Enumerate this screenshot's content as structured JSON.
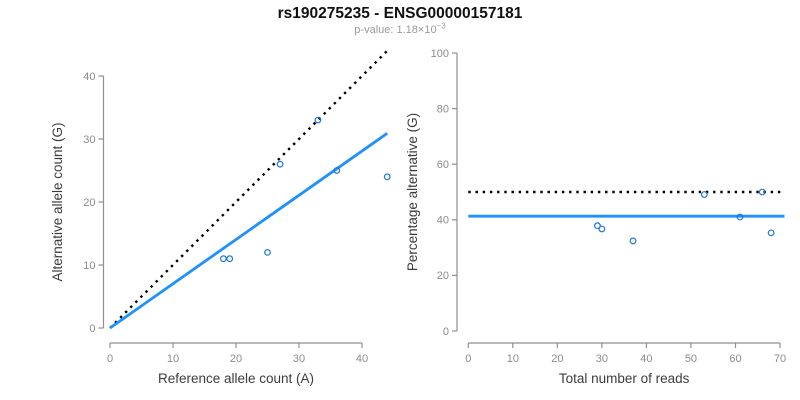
{
  "header": {
    "title": "rs190275235 - ENSG00000157181",
    "subtitle_prefix": "p-value: 1.18×10",
    "subtitle_exponent": "−3"
  },
  "colors": {
    "axis": "#8f8f8f",
    "tick_label": "#8c8c8c",
    "axis_label": "#3c3c3c",
    "title": "#111111",
    "subtitle": "#9b9b9b",
    "fit_line_blue": "#1E90FF",
    "point_blue": "#1C7AD6",
    "reference_line_black": "#000000"
  },
  "chart_data": [
    {
      "type": "scatter",
      "panel": "left",
      "xlabel": "Reference allele count (A)",
      "ylabel": "Alternative allele count (G)",
      "xticks": [
        0,
        10,
        20,
        30,
        40
      ],
      "yticks": [
        0,
        10,
        20,
        30,
        40
      ],
      "xlim": [
        0,
        44
      ],
      "ylim": [
        0,
        44
      ],
      "points": [
        [
          18,
          11
        ],
        [
          19,
          11
        ],
        [
          25,
          12
        ],
        [
          27,
          26
        ],
        [
          33,
          33
        ],
        [
          36,
          25
        ],
        [
          44,
          24
        ]
      ],
      "lines": [
        {
          "name": "identity-line",
          "style": "dotted",
          "color": "#000000",
          "x": [
            0,
            44
          ],
          "y": [
            0,
            44
          ]
        },
        {
          "name": "fit-line",
          "style": "solid",
          "color": "#1E90FF",
          "x": [
            0,
            44
          ],
          "y": [
            0,
            30.9
          ],
          "slope": 0.703
        }
      ],
      "grid": false,
      "legend": null
    },
    {
      "type": "scatter",
      "panel": "right",
      "xlabel": "Total number of reads",
      "ylabel": "Percentage alternative (G)",
      "xticks": [
        0,
        10,
        20,
        30,
        40,
        50,
        60,
        70
      ],
      "yticks": [
        0,
        20,
        40,
        60,
        80,
        100
      ],
      "xlim": [
        0,
        71
      ],
      "ylim": [
        0,
        100
      ],
      "points": [
        [
          29,
          37.9
        ],
        [
          30,
          36.7
        ],
        [
          37,
          32.4
        ],
        [
          53,
          49.1
        ],
        [
          61,
          41.0
        ],
        [
          66,
          50.0
        ],
        [
          68,
          35.3
        ]
      ],
      "lines": [
        {
          "name": "null-line-50pct",
          "style": "dotted",
          "color": "#000000",
          "x": [
            0,
            71
          ],
          "y": [
            50,
            50
          ]
        },
        {
          "name": "fit-line-mean-pct",
          "style": "solid",
          "color": "#1E90FF",
          "x": [
            0,
            71
          ],
          "y": [
            41.3,
            41.3
          ]
        }
      ],
      "grid": false,
      "legend": null
    }
  ]
}
